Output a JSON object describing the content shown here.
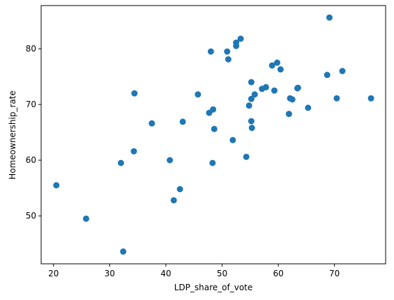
{
  "chart_data": {
    "type": "scatter",
    "xlabel": "LDP_share_of_vote",
    "ylabel": "Homeownership_rate",
    "color": "#1f77b4",
    "x": [
      20.5,
      25.8,
      32.0,
      32.4,
      34.3,
      34.4,
      37.5,
      40.7,
      41.4,
      42.5,
      43.0,
      45.7,
      47.7,
      48.0,
      48.4,
      48.3,
      48.6,
      50.9,
      51.1,
      51.9,
      52.5,
      52.5,
      53.3,
      54.3,
      54.8,
      55.2,
      55.2,
      55.2,
      55.3,
      55.8,
      57.1,
      57.8,
      58.9,
      59.3,
      59.8,
      60.4,
      61.9,
      62.1,
      62.5,
      63.4,
      63.5,
      65.3,
      68.7,
      69.1,
      70.4,
      71.4,
      76.5
    ],
    "values": [
      55.5,
      49.5,
      59.5,
      43.6,
      61.6,
      72.0,
      66.6,
      60.0,
      52.8,
      54.8,
      66.9,
      71.8,
      68.5,
      79.5,
      69.1,
      59.5,
      65.6,
      79.5,
      78.1,
      63.6,
      81.1,
      80.5,
      81.8,
      60.6,
      69.8,
      74.0,
      71.0,
      67.0,
      65.8,
      71.8,
      72.8,
      73.1,
      77.0,
      72.5,
      77.5,
      76.3,
      68.3,
      71.1,
      70.9,
      72.9,
      73.0,
      69.4,
      75.3,
      85.6,
      71.1,
      76.0,
      71.1
    ],
    "xlim": [
      17.8,
      79.1
    ],
    "ylim": [
      41.4,
      87.75
    ],
    "xticks": [
      20,
      30,
      40,
      50,
      60,
      70
    ],
    "yticks": [
      50,
      60,
      70,
      80
    ]
  }
}
